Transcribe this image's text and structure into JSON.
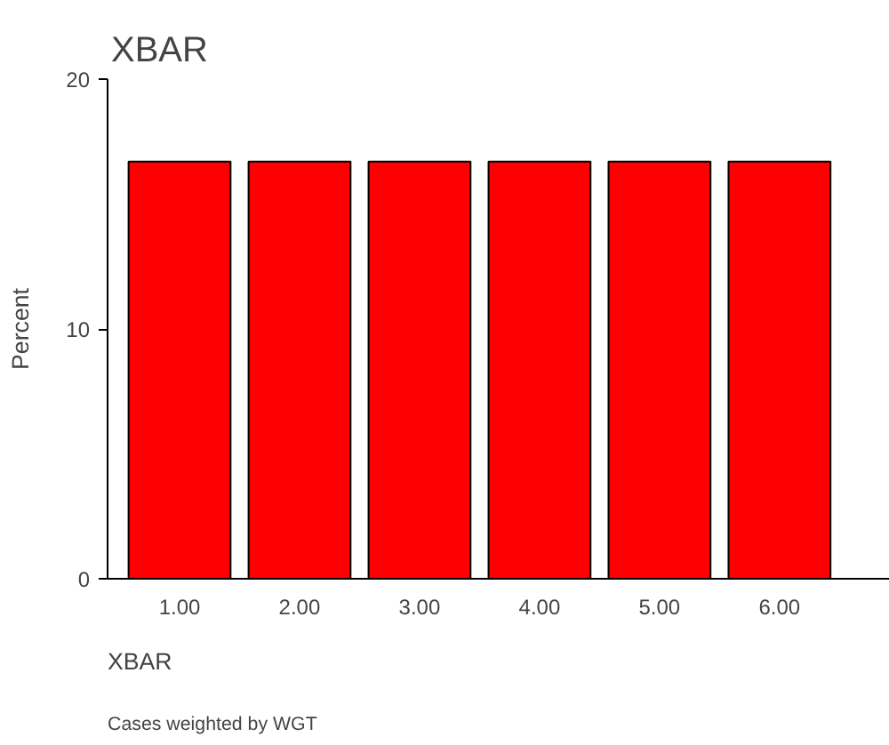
{
  "chart_data": {
    "type": "bar",
    "title": "XBAR",
    "xlabel": "XBAR",
    "ylabel": "Percent",
    "categories": [
      "1.00",
      "2.00",
      "3.00",
      "4.00",
      "5.00",
      "6.00"
    ],
    "values": [
      16.7,
      16.7,
      16.7,
      16.7,
      16.7,
      16.7
    ],
    "color": "#ff0000",
    "ylim": [
      0,
      20
    ],
    "yticks": [
      0,
      10,
      20
    ],
    "grid": false,
    "annotations": [
      "Cases weighted by WGT"
    ]
  }
}
